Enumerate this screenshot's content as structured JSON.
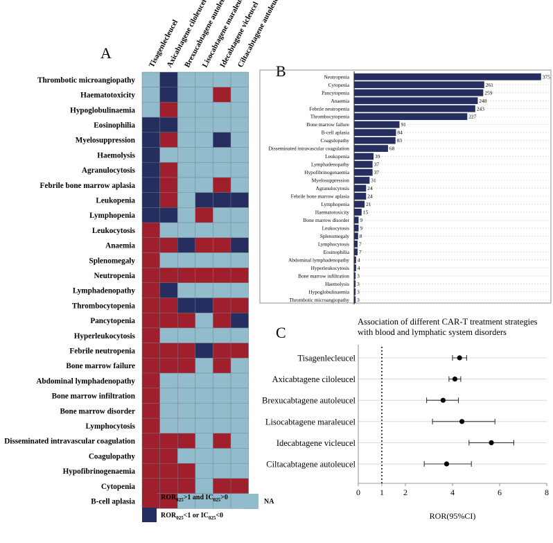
{
  "colors": {
    "significant": "#a01f2c",
    "not_significant": "#252e5e",
    "na": "#92bccb",
    "bar": "#252e5e",
    "grid": "#cfcfcf"
  },
  "chart_data": [
    {
      "type": "heatmap",
      "panel": "A",
      "columns": [
        "Tisagenlecleucel",
        "Axicabtagene ciloleucel",
        "Brexucabtagene autoleucel",
        "Lisocabtagene maraleucel",
        "Idecabtagene vicleucel",
        "Ciltacabtagene autoleucel"
      ],
      "rows": [
        {
          "label": "Thrombotic microangiopathy",
          "cells": [
            "na",
            "ns",
            "na",
            "na",
            "na",
            "na"
          ]
        },
        {
          "label": "Haematotoxicity",
          "cells": [
            "na",
            "ns",
            "na",
            "na",
            "sig",
            "na"
          ]
        },
        {
          "label": "Hypoglobulinaemia",
          "cells": [
            "na",
            "sig",
            "na",
            "na",
            "na",
            "na"
          ]
        },
        {
          "label": "Eosinophilia",
          "cells": [
            "ns",
            "ns",
            "na",
            "na",
            "na",
            "na"
          ]
        },
        {
          "label": "Myelosuppression",
          "cells": [
            "ns",
            "sig",
            "na",
            "na",
            "ns",
            "na"
          ]
        },
        {
          "label": "Haemolysis",
          "cells": [
            "ns",
            "na",
            "na",
            "na",
            "na",
            "na"
          ]
        },
        {
          "label": "Agranulocytosis",
          "cells": [
            "ns",
            "sig",
            "na",
            "na",
            "na",
            "na"
          ]
        },
        {
          "label": "Febrile bone marrow aplasia",
          "cells": [
            "ns",
            "sig",
            "na",
            "na",
            "sig",
            "na"
          ]
        },
        {
          "label": "Leukopenia",
          "cells": [
            "ns",
            "sig",
            "na",
            "ns",
            "ns",
            "ns"
          ]
        },
        {
          "label": "Lymphopenia",
          "cells": [
            "ns",
            "ns",
            "na",
            "sig",
            "na",
            "na"
          ]
        },
        {
          "label": "Leukocytosis",
          "cells": [
            "sig",
            "na",
            "na",
            "na",
            "na",
            "na"
          ]
        },
        {
          "label": "Anaemia",
          "cells": [
            "sig",
            "sig",
            "ns",
            "sig",
            "sig",
            "ns"
          ]
        },
        {
          "label": "Splenomegaly",
          "cells": [
            "sig",
            "na",
            "na",
            "na",
            "na",
            "na"
          ]
        },
        {
          "label": "Neutropenia",
          "cells": [
            "sig",
            "sig",
            "sig",
            "sig",
            "sig",
            "sig"
          ]
        },
        {
          "label": "Lymphadenopathy",
          "cells": [
            "sig",
            "ns",
            "na",
            "na",
            "na",
            "na"
          ]
        },
        {
          "label": "Thrombocytopenia",
          "cells": [
            "sig",
            "sig",
            "ns",
            "ns",
            "sig",
            "sig"
          ]
        },
        {
          "label": "Pancytopenia",
          "cells": [
            "sig",
            "sig",
            "sig",
            "na",
            "sig",
            "ns"
          ]
        },
        {
          "label": "Hyperleukocytosis",
          "cells": [
            "sig",
            "na",
            "na",
            "na",
            "na",
            "na"
          ]
        },
        {
          "label": "Febrile neutropenia",
          "cells": [
            "sig",
            "sig",
            "sig",
            "ns",
            "sig",
            "sig"
          ]
        },
        {
          "label": "Bone marrow failure",
          "cells": [
            "sig",
            "sig",
            "sig",
            "na",
            "sig",
            "na"
          ]
        },
        {
          "label": "Abdominal lymphadenopathy",
          "cells": [
            "sig",
            "na",
            "na",
            "na",
            "na",
            "na"
          ]
        },
        {
          "label": "Bone marrow infiltration",
          "cells": [
            "sig",
            "na",
            "na",
            "na",
            "na",
            "na"
          ]
        },
        {
          "label": "Bone marrow disorder",
          "cells": [
            "sig",
            "na",
            "na",
            "na",
            "na",
            "na"
          ]
        },
        {
          "label": "Lymphocytosis",
          "cells": [
            "sig",
            "na",
            "na",
            "na",
            "na",
            "na"
          ]
        },
        {
          "label": "Disseminated intravascular coagulation",
          "cells": [
            "sig",
            "sig",
            "sig",
            "na",
            "sig",
            "na"
          ]
        },
        {
          "label": "Coagulopathy",
          "cells": [
            "sig",
            "sig",
            "na",
            "na",
            "na",
            "na"
          ]
        },
        {
          "label": "Hypofibrinogenaemia",
          "cells": [
            "sig",
            "sig",
            "sig",
            "na",
            "na",
            "na"
          ]
        },
        {
          "label": "Cytopenia",
          "cells": [
            "sig",
            "sig",
            "sig",
            "na",
            "sig",
            "sig"
          ]
        },
        {
          "label": "B-cell aplasia",
          "cells": [
            "sig",
            "sig",
            "na",
            "na",
            "na",
            "na"
          ]
        }
      ],
      "legend": {
        "sig_prefix": "ROR",
        "sig_sub1": "025",
        "sig_mid": ">1 and IC",
        "sig_sub2": "025",
        "sig_suffix": ">0",
        "ns_prefix": "ROR",
        "ns_sub1": "025",
        "ns_mid": "<1 or IC",
        "ns_sub2": "025",
        "ns_suffix": "<0",
        "na": "NA"
      }
    },
    {
      "type": "bar",
      "panel": "B",
      "orientation": "horizontal",
      "xlim": [
        0,
        385
      ],
      "categories": [
        "Neutropenia",
        "Cytopenia",
        "Pancytopenia",
        "Anaemia",
        "Febrile neutropenia",
        "Thrombocytopenia",
        "Bone marrow failure",
        "B-cell aplasia",
        "Coagulopathy",
        "Disseminated intravascular coagulation",
        "Leukopenia",
        "Lymphadenopathy",
        "Hypofibrinogenaemia",
        "Myelosuppression",
        "Agranulocytosis",
        "Febrile bone marrow aplasia",
        "Lymphopenia",
        "Haematotoxicity",
        "Bone marrow disorder",
        "Leukocytosis",
        "Splenomegaly",
        "Lymphocytosis",
        "Eosinophilia",
        "Abdominal lymphadenopathy",
        "Hyperleukocytosis",
        "Bone marrow infiltration",
        "Haemolysis",
        "Hypoglobulinaemia",
        "Thrombotic microangiopathy"
      ],
      "values": [
        375,
        261,
        259,
        248,
        243,
        227,
        91,
        84,
        83,
        68,
        39,
        37,
        37,
        31,
        24,
        24,
        21,
        15,
        9,
        9,
        8,
        7,
        7,
        4,
        4,
        3,
        3,
        3,
        3
      ]
    },
    {
      "type": "scatter",
      "subtype": "forest",
      "panel": "C",
      "title_line1": "Association of different CAR-T treatment strategies",
      "title_line2": "with blood and lymphatic system disorders",
      "xlabel": "ROR(95%CI)",
      "xlim": [
        0,
        8
      ],
      "xticks": [
        0,
        1,
        2,
        4,
        6,
        8
      ],
      "reference_line": 1,
      "series": [
        {
          "name": "Tisagenlecleucel",
          "estimate": 4.3,
          "lower": 4.0,
          "upper": 4.6
        },
        {
          "name": "Axicabtagene ciloleucel",
          "estimate": 4.1,
          "lower": 3.85,
          "upper": 4.35
        },
        {
          "name": "Brexucabtagene autoleucel",
          "estimate": 3.6,
          "lower": 2.9,
          "upper": 4.25
        },
        {
          "name": "Lisocabtagene maraleucel",
          "estimate": 4.4,
          "lower": 3.15,
          "upper": 5.8
        },
        {
          "name": "Idecabtagene vicleucel",
          "estimate": 5.65,
          "lower": 4.7,
          "upper": 6.6
        },
        {
          "name": "Ciltacabtagene autoleucel",
          "estimate": 3.75,
          "lower": 2.8,
          "upper": 4.8
        }
      ]
    }
  ]
}
